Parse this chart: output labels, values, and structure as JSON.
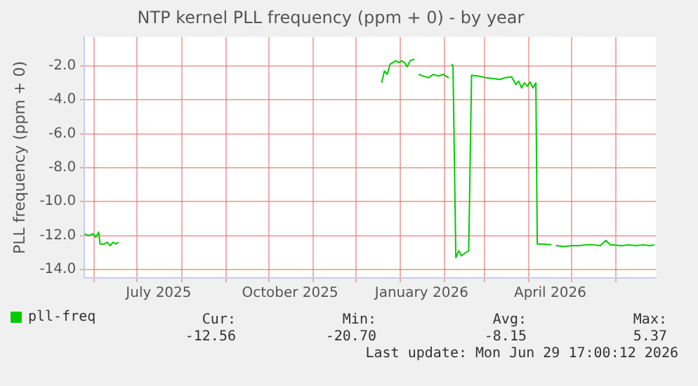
{
  "chart_data": {
    "type": "line",
    "title": "NTP kernel PLL frequency (ppm + 0) - by year",
    "ylabel": "PLL frequency (ppm + 0)",
    "x": [
      "2025-05-25",
      "2025-05-28",
      "2025-05-31",
      "2025-06-02",
      "2025-06-04",
      "2025-06-05",
      "2025-06-08",
      "2025-06-10",
      "2025-06-12",
      "2025-06-14",
      "2025-06-16",
      "2025-06-18",
      "2025-06-19",
      "2025-12-19",
      "2025-12-21",
      "2025-12-23",
      "2025-12-25",
      "2025-12-27",
      "2025-12-29",
      "2025-12-31",
      "2026-01-02",
      "2026-01-04",
      "2026-01-06",
      "2026-01-08",
      "2026-01-11",
      "2026-01-12",
      "2026-01-14",
      "2026-01-17",
      "2026-01-21",
      "2026-01-24",
      "2026-01-28",
      "2026-01-31",
      "2026-02-04",
      "2026-02-05",
      "2026-02-06",
      "2026-02-07",
      "2026-02-09",
      "2026-02-11",
      "2026-02-13",
      "2026-02-16",
      "2026-02-18",
      "2026-02-20",
      "2026-02-25",
      "2026-03-02",
      "2026-03-07",
      "2026-03-12",
      "2026-03-15",
      "2026-03-20",
      "2026-03-23",
      "2026-03-25",
      "2026-03-27",
      "2026-03-29",
      "2026-03-31",
      "2026-04-02",
      "2026-04-04",
      "2026-04-06",
      "2026-04-07",
      "2026-04-11",
      "2026-04-17",
      "2026-04-18",
      "2026-04-20",
      "2026-04-26",
      "2026-05-01",
      "2026-05-06",
      "2026-05-11",
      "2026-05-16",
      "2026-05-21",
      "2026-05-25",
      "2026-05-28",
      "2026-06-05",
      "2026-06-10",
      "2026-06-15",
      "2026-06-20",
      "2026-06-25",
      "2026-06-28"
    ],
    "series": [
      {
        "name": "pll-freq",
        "color": "#00cc00",
        "values": [
          -11.9,
          -12.0,
          -11.9,
          -12.1,
          -11.8,
          -12.5,
          -12.5,
          -12.4,
          -12.6,
          -12.4,
          -12.5,
          -12.4,
          null,
          -3.0,
          -2.3,
          -2.5,
          -1.9,
          -1.8,
          -1.7,
          -1.8,
          -1.7,
          -1.8,
          -2.05,
          -1.7,
          -1.6,
          null,
          -2.5,
          -2.6,
          -2.7,
          -2.5,
          -2.6,
          -2.5,
          -2.7,
          null,
          -1.9,
          -2.0,
          -13.3,
          -12.9,
          -13.2,
          -13.0,
          -12.9,
          -2.55,
          -2.6,
          -2.7,
          -2.75,
          -2.8,
          -2.7,
          -2.65,
          -3.1,
          -2.9,
          -3.3,
          -3.0,
          -3.2,
          -2.95,
          -3.3,
          -3.0,
          -12.5,
          -12.5,
          -12.55,
          null,
          -12.6,
          -12.65,
          -12.6,
          -12.6,
          -12.55,
          -12.55,
          -12.6,
          -12.3,
          -12.55,
          -12.6,
          -12.55,
          -12.6,
          -12.55,
          -12.6,
          -12.55
        ]
      }
    ],
    "xlim": [
      "2025-05-25",
      "2026-06-29"
    ],
    "xticks": [
      {
        "value": "2025-06-01",
        "label": null
      },
      {
        "value": "2025-07-01",
        "label": null
      },
      {
        "value": "2025-07-16",
        "label": "July 2025"
      },
      {
        "value": "2025-08-01",
        "label": null
      },
      {
        "value": "2025-09-01",
        "label": null
      },
      {
        "value": "2025-10-01",
        "label": null
      },
      {
        "value": "2025-10-16",
        "label": "October 2025"
      },
      {
        "value": "2025-11-01",
        "label": null
      },
      {
        "value": "2025-12-01",
        "label": null
      },
      {
        "value": "2026-01-01",
        "label": null
      },
      {
        "value": "2026-01-16",
        "label": "January 2026"
      },
      {
        "value": "2026-02-01",
        "label": null
      },
      {
        "value": "2026-03-01",
        "label": null
      },
      {
        "value": "2026-04-01",
        "label": null
      },
      {
        "value": "2026-04-16",
        "label": "April 2026"
      },
      {
        "value": "2026-05-01",
        "label": null
      },
      {
        "value": "2026-06-01",
        "label": null
      }
    ],
    "ylim": [
      -14.5,
      -0.3
    ],
    "yticks": [
      {
        "value": -2,
        "label": "-2.0"
      },
      {
        "value": -4,
        "label": "-4.0"
      },
      {
        "value": -6,
        "label": "-6.0"
      },
      {
        "value": -8,
        "label": "-8.0"
      },
      {
        "value": -10,
        "label": "-10.0"
      },
      {
        "value": -12,
        "label": "-12.0"
      },
      {
        "value": -14,
        "label": "-14.0"
      }
    ],
    "grid": true,
    "legend": "bottom left",
    "marker": "none",
    "line_style": "solid",
    "annotations": [
      "Cur:",
      "Min:",
      "Avg:",
      "Max:",
      "-12.56",
      "-20.70",
      "-8.15",
      "5.37",
      "Last update: Mon Jun 29 17:00:12 2026"
    ]
  }
}
